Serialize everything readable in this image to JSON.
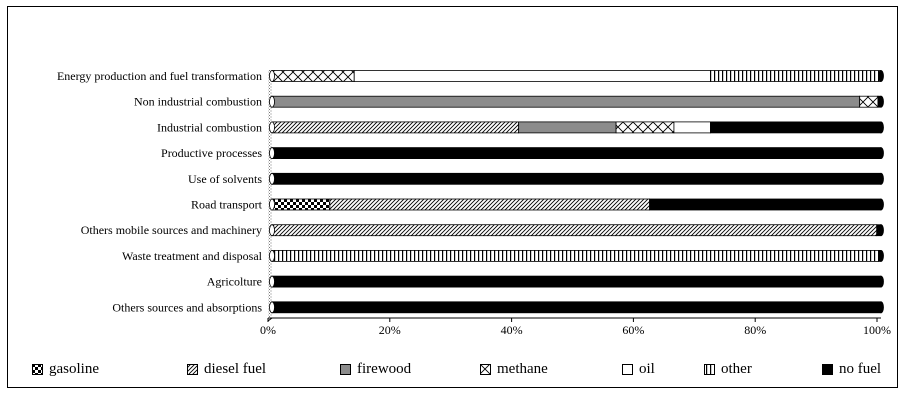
{
  "chart_data": {
    "type": "bar",
    "orientation": "horizontal",
    "stacked": "percent",
    "categories": [
      "Energy production and fuel transformation",
      "Non industrial combustion",
      "Industrial combustion",
      "Productive processes",
      "Use of solvents",
      "Road transport",
      "Others mobile sources and machinery",
      "Waste treatment and disposal",
      "Agricolture",
      "Others sources and absorptions"
    ],
    "series": [
      {
        "name": "gasoline",
        "pattern": "checker",
        "values": [
          0,
          0,
          0,
          0,
          0,
          9.5,
          0,
          0,
          0,
          0
        ]
      },
      {
        "name": "diesel fuel",
        "pattern": "diagonal",
        "values": [
          0,
          0,
          40.5,
          0,
          0,
          52.5,
          99.3,
          0,
          0,
          0
        ]
      },
      {
        "name": "firewood",
        "pattern": "gray",
        "values": [
          0,
          96.5,
          16,
          0,
          0,
          0,
          0,
          0,
          0,
          0
        ]
      },
      {
        "name": "methane",
        "pattern": "zigzag",
        "values": [
          13.5,
          3,
          9.5,
          0,
          0,
          0,
          0,
          0,
          0,
          0
        ]
      },
      {
        "name": "oil",
        "pattern": "white",
        "values": [
          58.5,
          0,
          6,
          0,
          0,
          0,
          0,
          0,
          0,
          0
        ]
      },
      {
        "name": "other",
        "pattern": "vertical",
        "values": [
          28,
          0,
          0,
          0,
          0,
          0,
          0,
          99.6,
          0,
          0
        ]
      },
      {
        "name": "no fuel",
        "pattern": "black",
        "values": [
          0,
          0.5,
          28,
          100,
          100,
          38,
          0.7,
          0.4,
          100,
          100
        ]
      }
    ],
    "x_ticks": [
      "0%",
      "20%",
      "40%",
      "60%",
      "80%",
      "100%"
    ],
    "xlim": [
      0,
      100
    ],
    "grid": false,
    "legend_position": "bottom",
    "title": "",
    "xlabel": "",
    "ylabel": ""
  }
}
